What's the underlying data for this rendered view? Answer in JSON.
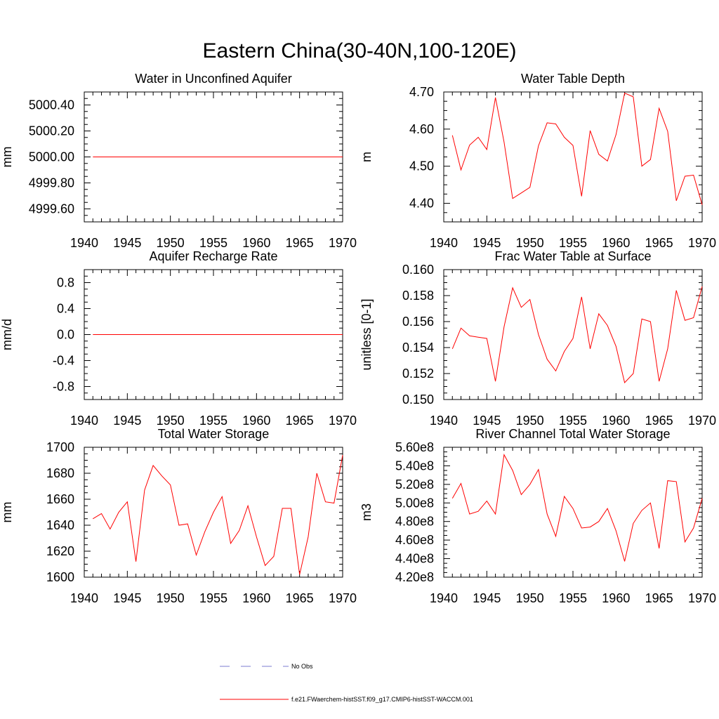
{
  "figure": {
    "title": "Eastern China(30-40N,100-120E)"
  },
  "legend": {
    "entries": [
      {
        "label": "No Obs",
        "style": "dashed",
        "color": "#7b7bd1"
      },
      {
        "label": "f.e21.FWaerchem-histSST.f09_g17.CMIP6-histSST-WACCM.001",
        "style": "solid",
        "color": "#ff0000"
      }
    ]
  },
  "colors": {
    "model": "#ff0000",
    "obs": "#7b7bd1"
  },
  "chart_data": [
    {
      "type": "line",
      "title": "Water in Unconfined Aquifer",
      "xlabel": "",
      "ylabel": "mm",
      "xlim": [
        1940,
        1970
      ],
      "ylim": [
        4999.5,
        5000.5
      ],
      "xticks": [
        1940,
        1945,
        1950,
        1955,
        1960,
        1965,
        1970
      ],
      "yticks": [
        4999.6,
        4999.8,
        5000.0,
        5000.2,
        5000.4
      ],
      "ytick_labels": [
        "4999.60",
        "4999.80",
        "5000.00",
        "5000.20",
        "5000.40"
      ],
      "x": [
        1941,
        1970
      ],
      "series": [
        {
          "values": [
            5000.0,
            5000.0
          ]
        }
      ]
    },
    {
      "type": "line",
      "title": "Water Table Depth",
      "xlabel": "",
      "ylabel": "m",
      "xlim": [
        1940,
        1970
      ],
      "ylim": [
        4.35,
        4.7
      ],
      "xticks": [
        1940,
        1945,
        1950,
        1955,
        1960,
        1965,
        1970
      ],
      "yticks": [
        4.4,
        4.5,
        4.6,
        4.7
      ],
      "ytick_labels": [
        "4.40",
        "4.50",
        "4.60",
        "4.70"
      ],
      "x": [
        1941,
        1942,
        1943,
        1944,
        1945,
        1946,
        1947,
        1948,
        1949,
        1950,
        1951,
        1952,
        1953,
        1954,
        1955,
        1956,
        1957,
        1958,
        1959,
        1960,
        1961,
        1962,
        1963,
        1964,
        1965,
        1966,
        1967,
        1968,
        1969,
        1970
      ],
      "series": [
        {
          "values": [
            4.583,
            4.49,
            4.557,
            4.578,
            4.545,
            4.685,
            4.565,
            4.413,
            4.428,
            4.443,
            4.555,
            4.617,
            4.614,
            4.578,
            4.556,
            4.419,
            4.596,
            4.532,
            4.514,
            4.585,
            4.697,
            4.687,
            4.5,
            4.518,
            4.656,
            4.594,
            4.407,
            4.473,
            4.476,
            4.396
          ]
        }
      ]
    },
    {
      "type": "line",
      "title": "Aquifer Recharge Rate",
      "xlabel": "",
      "ylabel": "mm/d",
      "xlim": [
        1940,
        1970
      ],
      "ylim": [
        -1.0,
        1.0
      ],
      "xticks": [
        1940,
        1945,
        1950,
        1955,
        1960,
        1965,
        1970
      ],
      "yticks": [
        -0.8,
        -0.4,
        0.0,
        0.4,
        0.8
      ],
      "ytick_labels": [
        "-0.8",
        "-0.4",
        "0.0",
        "0.4",
        "0.8"
      ],
      "x": [
        1941,
        1970
      ],
      "series": [
        {
          "values": [
            0.0,
            0.0
          ]
        }
      ]
    },
    {
      "type": "line",
      "title": "Frac Water Table at Surface",
      "xlabel": "",
      "ylabel": "unitless [0-1]",
      "xlim": [
        1940,
        1970
      ],
      "ylim": [
        0.15,
        0.16
      ],
      "xticks": [
        1940,
        1945,
        1950,
        1955,
        1960,
        1965,
        1970
      ],
      "yticks": [
        0.15,
        0.152,
        0.154,
        0.156,
        0.158,
        0.16
      ],
      "ytick_labels": [
        "0.150",
        "0.152",
        "0.154",
        "0.156",
        "0.158",
        "0.160"
      ],
      "x": [
        1941,
        1942,
        1943,
        1944,
        1945,
        1946,
        1947,
        1948,
        1949,
        1950,
        1951,
        1952,
        1953,
        1954,
        1955,
        1956,
        1957,
        1958,
        1959,
        1960,
        1961,
        1962,
        1963,
        1964,
        1965,
        1966,
        1967,
        1968,
        1969,
        1970
      ],
      "series": [
        {
          "values": [
            0.1539,
            0.1555,
            0.1549,
            0.1548,
            0.1547,
            0.1514,
            0.1556,
            0.1586,
            0.1571,
            0.1577,
            0.155,
            0.1531,
            0.1522,
            0.1537,
            0.1547,
            0.1579,
            0.1539,
            0.1566,
            0.1557,
            0.1541,
            0.1513,
            0.152,
            0.1562,
            0.156,
            0.1514,
            0.1539,
            0.1584,
            0.1561,
            0.1563,
            0.1587
          ]
        }
      ]
    },
    {
      "type": "line",
      "title": "Total Water Storage",
      "xlabel": "",
      "ylabel": "mm",
      "xlim": [
        1940,
        1970
      ],
      "ylim": [
        1600,
        1700
      ],
      "xticks": [
        1940,
        1945,
        1950,
        1955,
        1960,
        1965,
        1970
      ],
      "yticks": [
        1600,
        1620,
        1640,
        1660,
        1680,
        1700
      ],
      "ytick_labels": [
        "1600",
        "1620",
        "1640",
        "1660",
        "1680",
        "1700"
      ],
      "x": [
        1941,
        1942,
        1943,
        1944,
        1945,
        1946,
        1947,
        1948,
        1949,
        1950,
        1951,
        1952,
        1953,
        1954,
        1955,
        1956,
        1957,
        1958,
        1959,
        1960,
        1961,
        1962,
        1963,
        1964,
        1965,
        1966,
        1967,
        1968,
        1969,
        1970
      ],
      "series": [
        {
          "values": [
            1645,
            1649,
            1637,
            1650,
            1658,
            1612,
            1667,
            1686,
            1678,
            1671,
            1640,
            1641,
            1617,
            1635,
            1650,
            1662,
            1626,
            1636,
            1655,
            1631,
            1609,
            1616,
            1653,
            1653,
            1602,
            1631,
            1680,
            1658,
            1657,
            1694
          ]
        }
      ]
    },
    {
      "type": "line",
      "title": "River Channel Total Water Storage",
      "xlabel": "",
      "ylabel": "m3",
      "xlim": [
        1940,
        1970
      ],
      "ylim": [
        420000000,
        560000000
      ],
      "xticks": [
        1940,
        1945,
        1950,
        1955,
        1960,
        1965,
        1970
      ],
      "yticks": [
        420000000,
        440000000,
        460000000,
        480000000,
        500000000,
        520000000,
        540000000,
        560000000
      ],
      "ytick_labels": [
        "4.20e8",
        "4.40e8",
        "4.60e8",
        "4.80e8",
        "5.00e8",
        "5.20e8",
        "5.40e8",
        "5.60e8"
      ],
      "x": [
        1941,
        1942,
        1943,
        1944,
        1945,
        1946,
        1947,
        1948,
        1949,
        1950,
        1951,
        1952,
        1953,
        1954,
        1955,
        1956,
        1957,
        1958,
        1959,
        1960,
        1961,
        1962,
        1963,
        1964,
        1965,
        1966,
        1967,
        1968,
        1969,
        1970
      ],
      "series": [
        {
          "values": [
            505000000,
            521000000,
            488000000,
            491000000,
            502000000,
            488000000,
            552000000,
            535000000,
            509000000,
            520000000,
            536000000,
            488000000,
            464000000,
            507000000,
            494000000,
            473000000,
            474000000,
            480000000,
            494000000,
            470000000,
            437000000,
            478000000,
            492000000,
            500000000,
            451000000,
            524000000,
            523000000,
            458000000,
            473000000,
            505000000
          ]
        }
      ]
    }
  ]
}
